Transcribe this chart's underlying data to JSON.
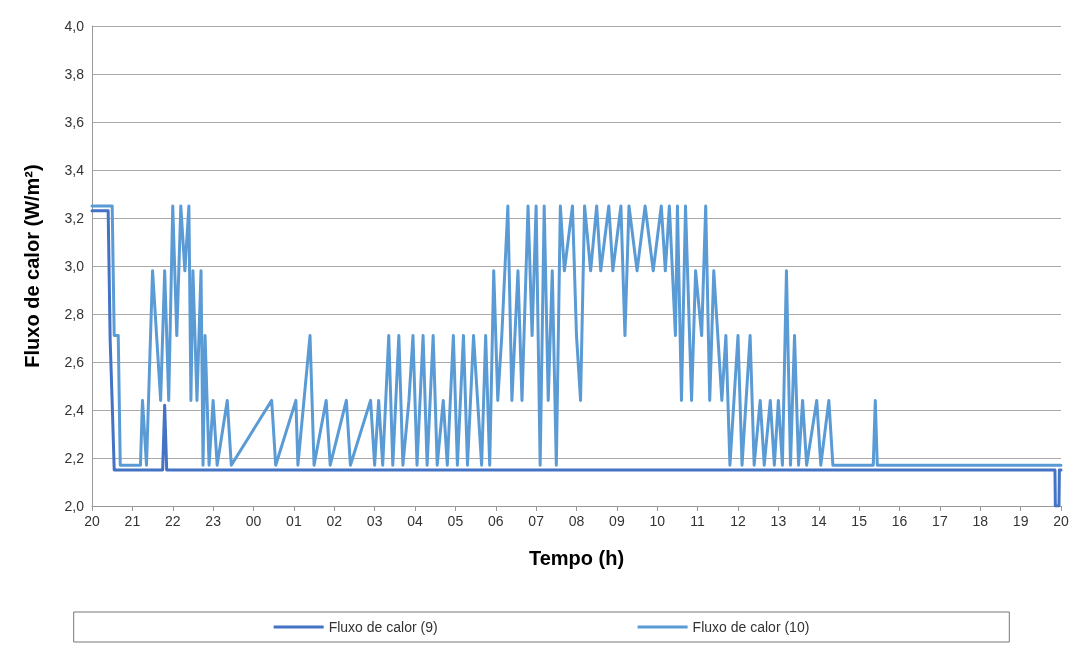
{
  "chart_data": {
    "type": "line",
    "xlabel": "Tempo (h)",
    "ylabel": "Fluxo de calor (W/m²)",
    "grid": "y",
    "legend": "bottom",
    "marker": "none",
    "line_style": "solid",
    "xlim": [
      20,
      44
    ],
    "xticks": [
      {
        "value": 20,
        "label": "20"
      },
      {
        "value": 21,
        "label": "21"
      },
      {
        "value": 22,
        "label": "22"
      },
      {
        "value": 23,
        "label": "23"
      },
      {
        "value": 24,
        "label": "00"
      },
      {
        "value": 25,
        "label": "01"
      },
      {
        "value": 26,
        "label": "02"
      },
      {
        "value": 27,
        "label": "03"
      },
      {
        "value": 28,
        "label": "04"
      },
      {
        "value": 29,
        "label": "05"
      },
      {
        "value": 30,
        "label": "06"
      },
      {
        "value": 31,
        "label": "07"
      },
      {
        "value": 32,
        "label": "08"
      },
      {
        "value": 33,
        "label": "09"
      },
      {
        "value": 34,
        "label": "10"
      },
      {
        "value": 35,
        "label": "11"
      },
      {
        "value": 36,
        "label": "12"
      },
      {
        "value": 37,
        "label": "13"
      },
      {
        "value": 38,
        "label": "14"
      },
      {
        "value": 39,
        "label": "15"
      },
      {
        "value": 40,
        "label": "16"
      },
      {
        "value": 41,
        "label": "17"
      },
      {
        "value": 42,
        "label": "18"
      },
      {
        "value": 43,
        "label": "19"
      },
      {
        "value": 44,
        "label": "20"
      }
    ],
    "ylim": [
      2,
      4
    ],
    "yticks": [
      {
        "value": 2,
        "label": "2,0"
      },
      {
        "value": 2.2,
        "label": "2,2"
      },
      {
        "value": 2.4,
        "label": "2,4"
      },
      {
        "value": 2.6,
        "label": "2,6"
      },
      {
        "value": 2.8,
        "label": "2,8"
      },
      {
        "value": 3,
        "label": "3,0"
      },
      {
        "value": 3.2,
        "label": "3,2"
      },
      {
        "value": 3.4,
        "label": "3,4"
      },
      {
        "value": 3.6,
        "label": "3,6"
      },
      {
        "value": 3.8,
        "label": "3,8"
      },
      {
        "value": 4,
        "label": "4,0"
      }
    ],
    "series": [
      {
        "name": "Fluxo de calor (9)",
        "color": "#4472c4",
        "x": [
          20,
          20.4,
          20.45,
          20.5,
          20.55,
          21.75,
          21.8,
          21.85,
          43.85,
          43.86,
          43.95,
          43.96,
          44
        ],
        "values": [
          3.23,
          3.23,
          2.69,
          2.43,
          2.15,
          2.15,
          2.42,
          2.15,
          2.15,
          2,
          2,
          2.15,
          2.15
        ]
      },
      {
        "name": "Fluxo de calor (10)",
        "color": "#5b9bd5",
        "x": [
          20,
          20.5,
          20.55,
          20.65,
          20.7,
          21.2,
          21.25,
          21.35,
          21.5,
          21.6,
          21.7,
          21.8,
          21.9,
          22.0,
          22.1,
          22.2,
          22.3,
          22.4,
          22.45,
          22.5,
          22.6,
          22.7,
          22.75,
          22.8,
          22.9,
          23.0,
          23.1,
          23.35,
          23.45,
          24.45,
          24.55,
          25.05,
          25.1,
          25.4,
          25.5,
          25.8,
          25.9,
          26.3,
          26.4,
          26.9,
          27.0,
          27.1,
          27.2,
          27.35,
          27.45,
          27.6,
          27.7,
          27.85,
          27.95,
          28.05,
          28.2,
          28.3,
          28.45,
          28.55,
          28.7,
          28.8,
          28.95,
          29.05,
          29.2,
          29.3,
          29.45,
          29.55,
          29.65,
          29.75,
          29.85,
          29.95,
          30.05,
          30.15,
          30.3,
          30.4,
          30.55,
          30.65,
          30.8,
          30.9,
          31.0,
          31.1,
          31.2,
          31.3,
          31.4,
          31.5,
          31.6,
          31.7,
          31.9,
          32.0,
          32.1,
          32.2,
          32.35,
          32.5,
          32.6,
          32.8,
          32.9,
          33.1,
          33.2,
          33.3,
          33.5,
          33.7,
          33.9,
          34.1,
          34.2,
          34.3,
          34.45,
          34.5,
          34.6,
          34.7,
          34.85,
          34.95,
          35.1,
          35.2,
          35.3,
          35.4,
          35.5,
          35.6,
          35.7,
          35.8,
          35.9,
          36.0,
          36.1,
          36.2,
          36.3,
          36.4,
          36.55,
          36.65,
          36.8,
          36.9,
          37.0,
          37.1,
          37.2,
          37.3,
          37.4,
          37.5,
          37.6,
          37.7,
          37.95,
          38.05,
          38.25,
          38.35,
          39.35,
          39.4,
          39.45,
          44
        ],
        "values": [
          3.25,
          3.25,
          2.71,
          2.71,
          2.17,
          2.17,
          2.44,
          2.17,
          2.98,
          2.71,
          2.44,
          2.98,
          2.44,
          3.25,
          2.71,
          3.25,
          2.98,
          3.25,
          2.44,
          2.98,
          2.44,
          2.98,
          2.17,
          2.71,
          2.17,
          2.44,
          2.17,
          2.44,
          2.17,
          2.44,
          2.17,
          2.44,
          2.17,
          2.71,
          2.17,
          2.44,
          2.17,
          2.44,
          2.17,
          2.44,
          2.17,
          2.44,
          2.17,
          2.71,
          2.17,
          2.71,
          2.17,
          2.44,
          2.71,
          2.17,
          2.71,
          2.17,
          2.71,
          2.17,
          2.44,
          2.17,
          2.71,
          2.17,
          2.71,
          2.17,
          2.71,
          2.44,
          2.17,
          2.71,
          2.17,
          2.98,
          2.44,
          2.71,
          3.25,
          2.44,
          2.98,
          2.44,
          3.25,
          2.71,
          3.25,
          2.17,
          3.25,
          2.44,
          2.98,
          2.17,
          3.25,
          2.98,
          3.25,
          2.71,
          2.44,
          3.25,
          2.98,
          3.25,
          2.98,
          3.25,
          2.98,
          3.25,
          2.71,
          3.25,
          2.98,
          3.25,
          2.98,
          3.25,
          2.98,
          3.25,
          2.71,
          3.25,
          2.44,
          3.25,
          2.44,
          2.98,
          2.71,
          3.25,
          2.44,
          2.98,
          2.71,
          2.44,
          2.71,
          2.17,
          2.44,
          2.71,
          2.17,
          2.44,
          2.71,
          2.17,
          2.44,
          2.17,
          2.44,
          2.17,
          2.44,
          2.17,
          2.98,
          2.17,
          2.71,
          2.17,
          2.44,
          2.17,
          2.44,
          2.17,
          2.44,
          2.17,
          2.17,
          2.44,
          2.17,
          2.17
        ]
      }
    ]
  }
}
